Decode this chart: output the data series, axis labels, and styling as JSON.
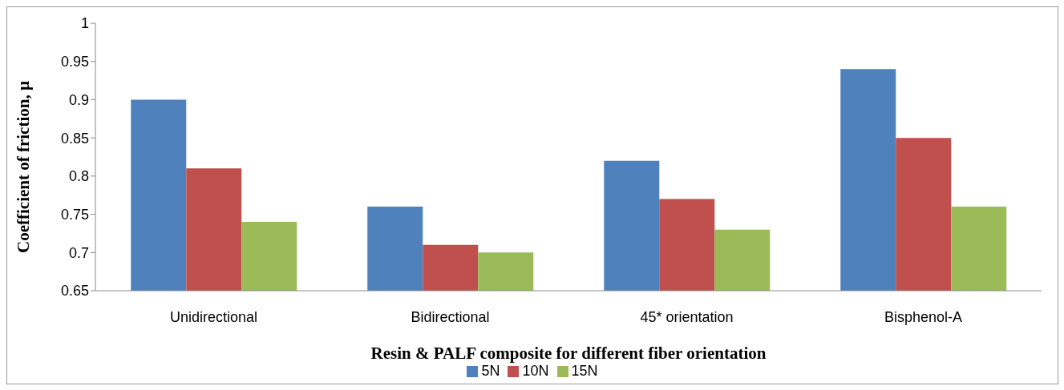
{
  "chart_data": {
    "type": "bar",
    "xlabel": "Resin & PALF composite for different fiber orientation",
    "ylabel": "Coefficient of friction, μ",
    "categories": [
      "Unidirectional",
      "Bidirectional",
      "45* orientation",
      "Bisphenol-A"
    ],
    "series": [
      {
        "name": "5N",
        "color": "#4f81bd",
        "values": [
          0.9,
          0.76,
          0.82,
          0.94
        ]
      },
      {
        "name": "10N",
        "color": "#c0504d",
        "values": [
          0.81,
          0.71,
          0.77,
          0.85
        ]
      },
      {
        "name": "15N",
        "color": "#9bbb59",
        "values": [
          0.74,
          0.7,
          0.73,
          0.76
        ]
      }
    ],
    "ylim": [
      0.65,
      1
    ],
    "yticks": [
      0.65,
      0.7,
      0.75,
      0.8,
      0.85,
      0.9,
      0.95,
      1
    ],
    "grid": false,
    "legend": "bottom"
  }
}
